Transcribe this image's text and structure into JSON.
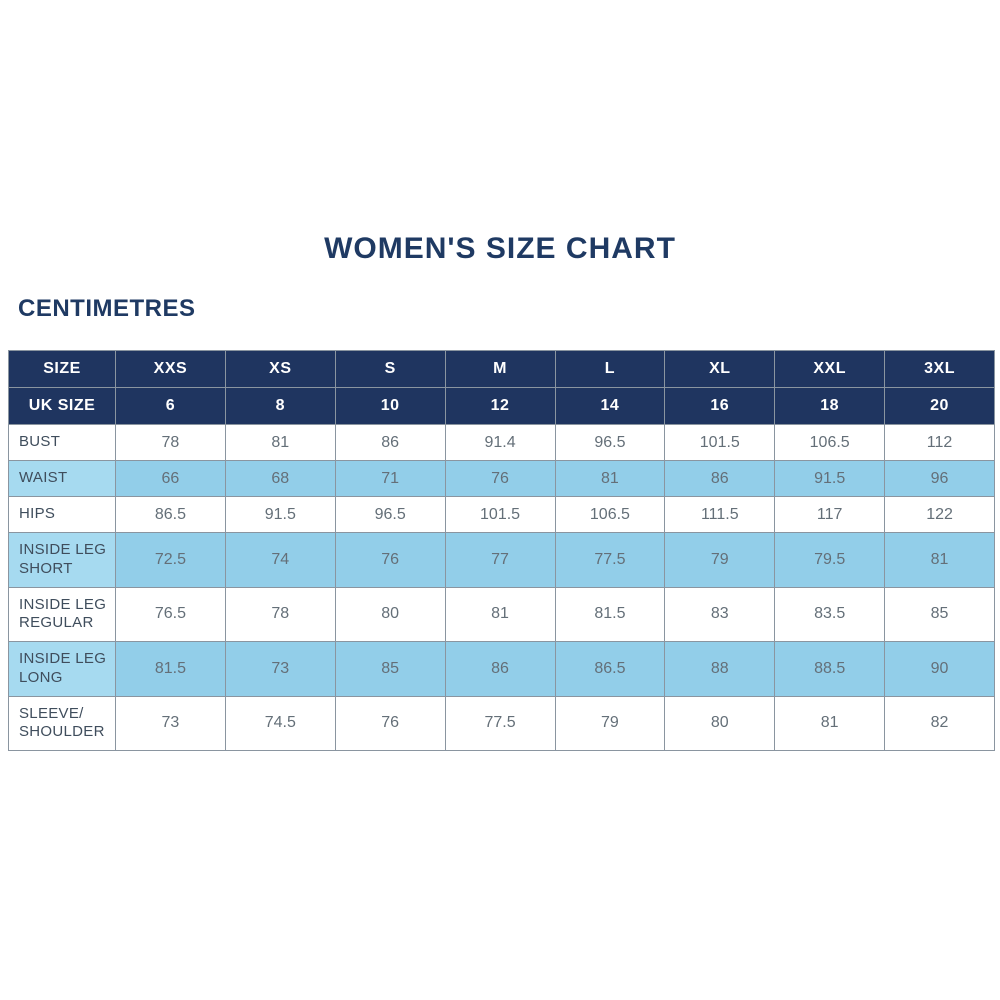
{
  "title": "WOMEN'S SIZE CHART",
  "subtitle": "CENTIMETRES",
  "colors": {
    "header_navy": "#1f3560",
    "row_blue": "#92cee9",
    "label_blue": "#a6daf0",
    "border_gray": "#8a95a0",
    "title_navy": "#1f3a63",
    "label_text": "#3f4d5c",
    "value_text": "#646f78"
  },
  "chart_data": {
    "type": "table",
    "title": "WOMEN'S SIZE CHART",
    "units_label": "CENTIMETRES",
    "columns": [
      "SIZE",
      "XXS",
      "XS",
      "S",
      "M",
      "L",
      "XL",
      "XXL",
      "3XL"
    ],
    "uk_size_row": {
      "label": "UK SIZE",
      "values": [
        "6",
        "8",
        "10",
        "12",
        "14",
        "16",
        "18",
        "20"
      ]
    },
    "rows": [
      {
        "label": "BUST",
        "values": [
          "78",
          "81",
          "86",
          "91.4",
          "96.5",
          "101.5",
          "106.5",
          "112"
        ]
      },
      {
        "label": "WAIST",
        "values": [
          "66",
          "68",
          "71",
          "76",
          "81",
          "86",
          "91.5",
          "96"
        ]
      },
      {
        "label": "HIPS",
        "values": [
          "86.5",
          "91.5",
          "96.5",
          "101.5",
          "106.5",
          "111.5",
          "117",
          "122"
        ]
      },
      {
        "label": "INSIDE LEG SHORT",
        "values": [
          "72.5",
          "74",
          "76",
          "77",
          "77.5",
          "79",
          "79.5",
          "81"
        ]
      },
      {
        "label": "INSIDE LEG REGULAR",
        "values": [
          "76.5",
          "78",
          "80",
          "81",
          "81.5",
          "83",
          "83.5",
          "85"
        ]
      },
      {
        "label": "INSIDE LEG LONG",
        "values": [
          "81.5",
          "73",
          "85",
          "86",
          "86.5",
          "88",
          "88.5",
          "90"
        ]
      },
      {
        "label": "SLEEVE/ SHOULDER",
        "values": [
          "73",
          "74.5",
          "76",
          "77.5",
          "79",
          "80",
          "81",
          "82"
        ]
      }
    ]
  }
}
